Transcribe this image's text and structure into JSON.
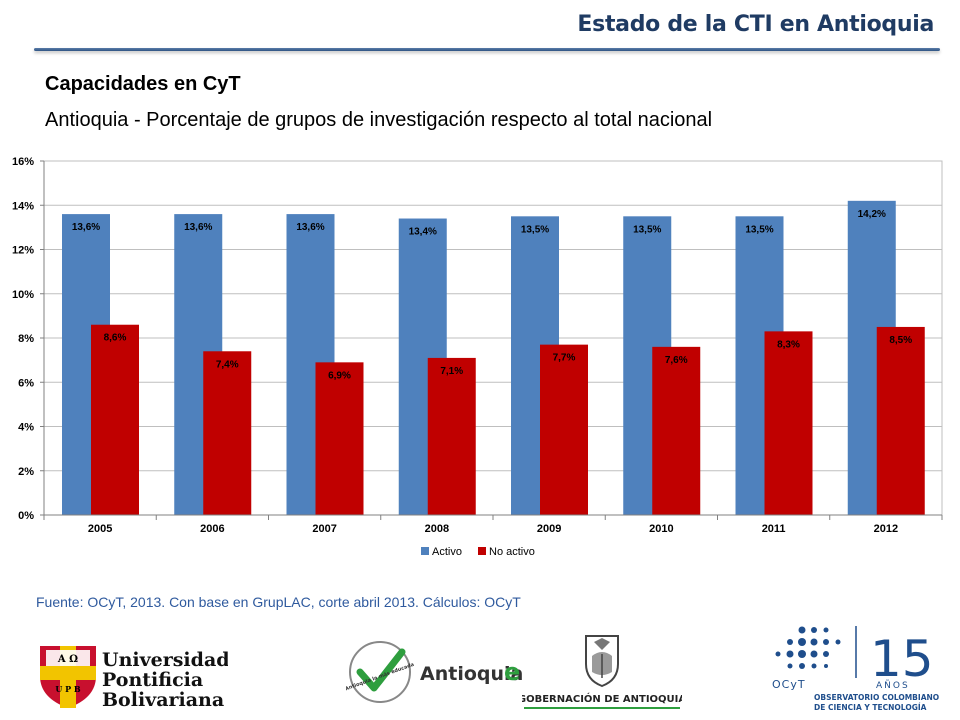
{
  "header": {
    "title": "Estado de la CTI en Antioquia"
  },
  "section_title": "Capacidades en CyT",
  "chart_data": {
    "type": "bar",
    "title": "Antioquia -  Porcentaje de grupos de investigación respecto al total nacional",
    "categories": [
      "2005",
      "2006",
      "2007",
      "2008",
      "2009",
      "2010",
      "2011",
      "2012"
    ],
    "series": [
      {
        "name": "Activo",
        "color": "#4f81bd",
        "values": [
          13.6,
          13.6,
          13.6,
          13.4,
          13.5,
          13.5,
          13.5,
          14.2
        ],
        "labels": [
          "13,6%",
          "13,6%",
          "13,6%",
          "13,4%",
          "13,5%",
          "13,5%",
          "13,5%",
          "14,2%"
        ]
      },
      {
        "name": "No activo",
        "color": "#c00000",
        "values": [
          8.6,
          7.4,
          6.9,
          7.1,
          7.7,
          7.6,
          8.3,
          8.5
        ],
        "labels": [
          "8,6%",
          "7,4%",
          "6,9%",
          "7,1%",
          "7,7%",
          "7,6%",
          "8,3%",
          "8,5%"
        ]
      }
    ],
    "ylim": [
      0,
      16
    ],
    "yticks": [
      "0%",
      "2%",
      "4%",
      "6%",
      "8%",
      "10%",
      "12%",
      "14%",
      "16%"
    ],
    "ytick_values": [
      0,
      2,
      4,
      6,
      8,
      10,
      12,
      14,
      16
    ],
    "grid": true,
    "legend": "bottom"
  },
  "source": "Fuente: OCyT, 2013. Con base en GrupLAC, corte abril 2013. Cálculos: OCyT",
  "logos": {
    "upb": {
      "line1": "Universidad",
      "line2": "Pontificia",
      "line3": "Bolivariana",
      "shield_top": "A Ω",
      "shield_bottom": "U P B"
    },
    "antioquia": {
      "badge": "Antioquia la más educada",
      "wordmark": "Antioquia",
      "letter": "e"
    },
    "gobernacion": {
      "text": "GOBERNACIÓN DE ANTIOQUIA"
    },
    "ocyt": {
      "number": "15",
      "years": "AÑOS",
      "brand": "OCyT",
      "line1": "OBSERVATORIO COLOMBIANO",
      "line2": "DE CIENCIA Y TECNOLOGÍA"
    }
  }
}
